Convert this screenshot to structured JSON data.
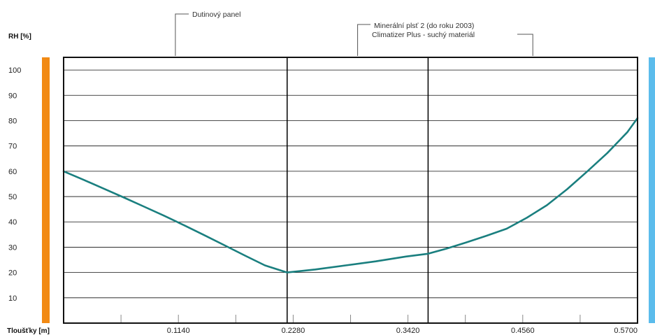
{
  "chart_data": {
    "type": "line",
    "ylabel": "RH [%]",
    "xlabel": "Tloušťky [m]",
    "ylim": [
      0,
      105
    ],
    "xlim": [
      0,
      0.57
    ],
    "yticks": [
      "10",
      "20",
      "30",
      "40",
      "50",
      "60",
      "70",
      "80",
      "90",
      "100"
    ],
    "xticks": [
      "0.1140",
      "0.2280",
      "0.3420",
      "0.4560",
      "0.5700"
    ],
    "grid": true,
    "layers": [
      {
        "name": "Dutinový panel",
        "x_start": 0,
        "x_end": 0.222
      },
      {
        "name": "Minerální plsť 2 (do roku 2003)",
        "x_start": 0.222,
        "x_end": 0.362
      },
      {
        "name": "Climatizer Plus - suchý materiál",
        "x_start": 0.362,
        "x_end": 0.57
      }
    ],
    "series": [
      {
        "x": [
          0,
          0.02,
          0.04,
          0.06,
          0.08,
          0.1,
          0.12,
          0.14,
          0.16,
          0.18,
          0.2,
          0.222,
          0.25,
          0.28,
          0.31,
          0.34,
          0.362,
          0.38,
          0.4,
          0.42,
          0.44,
          0.46,
          0.48,
          0.5,
          0.52,
          0.54,
          0.56,
          0.57
        ],
        "y": [
          60,
          56.6,
          53.1,
          49.6,
          46,
          42.4,
          38.6,
          34.7,
          30.7,
          26.7,
          22.8,
          20,
          21.2,
          22.8,
          24.4,
          26.3,
          27.4,
          29.4,
          31.9,
          34.5,
          37.3,
          41.6,
          46.6,
          52.9,
          59.9,
          67.2,
          75.5,
          81
        ]
      }
    ],
    "colors": {
      "line": "#1a7f7f",
      "left_bar": "#f28a14",
      "right_bar": "#5bbcec",
      "grid": "#111111"
    }
  }
}
